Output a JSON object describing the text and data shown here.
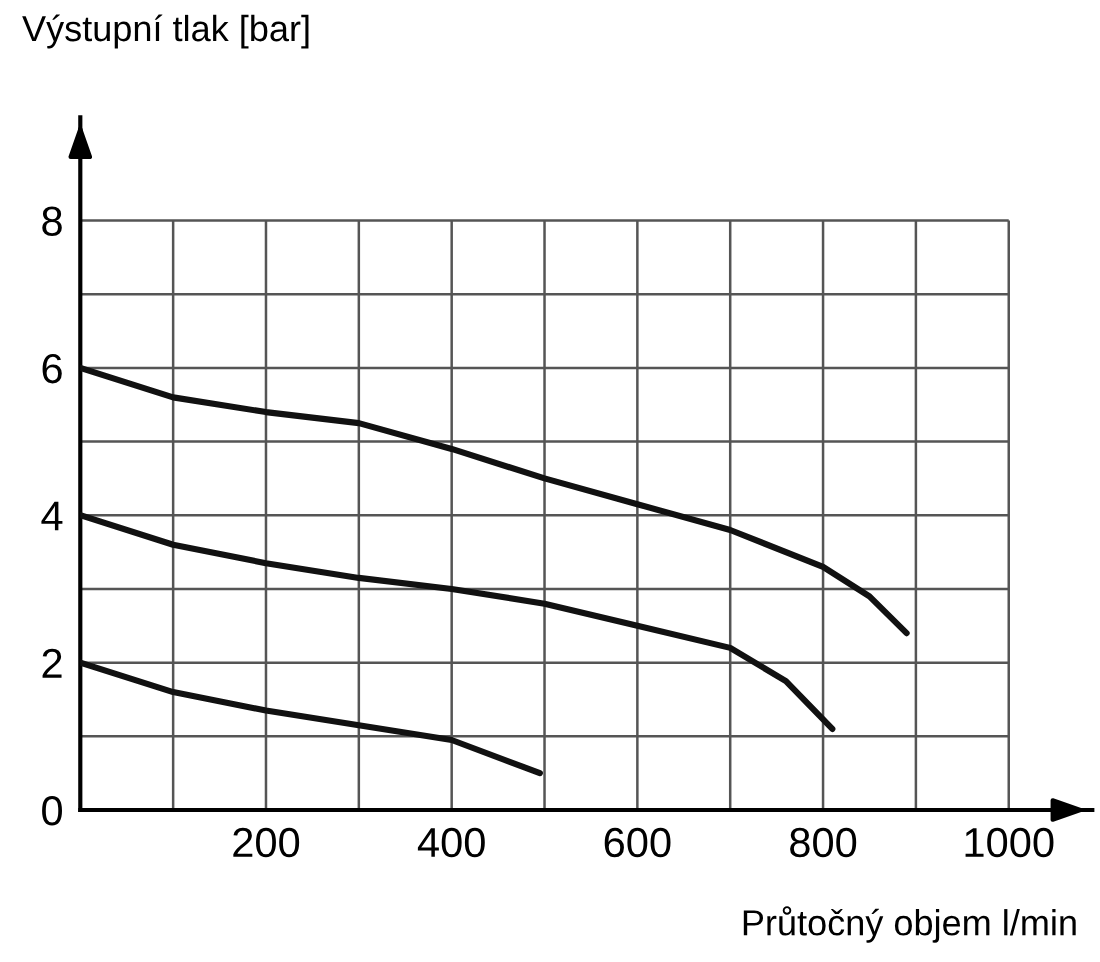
{
  "chart_data": {
    "type": "line",
    "xlabel": "Průtočný objem l/min",
    "ylabel": "Výstupní tlak [bar]",
    "xlim": [
      0,
      1090
    ],
    "ylim": [
      0,
      9.4
    ],
    "xticks": [
      {
        "value": 0,
        "label": null
      },
      {
        "value": 100,
        "label": null
      },
      200,
      {
        "value": 300,
        "label": null
      },
      400,
      {
        "value": 500,
        "label": null
      },
      600,
      {
        "value": 700,
        "label": null
      },
      800,
      {
        "value": 900,
        "label": null
      },
      1000
    ],
    "yticks": [
      0,
      {
        "value": 1,
        "label": null
      },
      2,
      {
        "value": 3,
        "label": null
      },
      4,
      {
        "value": 5,
        "label": null
      },
      6,
      {
        "value": 7,
        "label": null
      },
      8
    ],
    "grid": true,
    "marker": "none",
    "line_style": "solid",
    "series": [
      {
        "color": "#111111",
        "x": [
          0,
          100,
          200,
          300,
          400,
          500,
          600,
          700,
          800,
          850,
          890
        ],
        "values": [
          6,
          5.6,
          5.4,
          5.25,
          4.9,
          4.5,
          4.15,
          3.8,
          3.3,
          2.9,
          2.4
        ]
      },
      {
        "color": "#111111",
        "x": [
          0,
          100,
          200,
          300,
          400,
          500,
          600,
          700,
          760,
          810
        ],
        "values": [
          4,
          3.6,
          3.35,
          3.15,
          3.0,
          2.8,
          2.5,
          2.2,
          1.75,
          1.1
        ]
      },
      {
        "color": "#111111",
        "x": [
          0,
          100,
          200,
          300,
          400,
          495
        ],
        "values": [
          2,
          1.6,
          1.35,
          1.15,
          0.95,
          0.5
        ]
      }
    ]
  }
}
